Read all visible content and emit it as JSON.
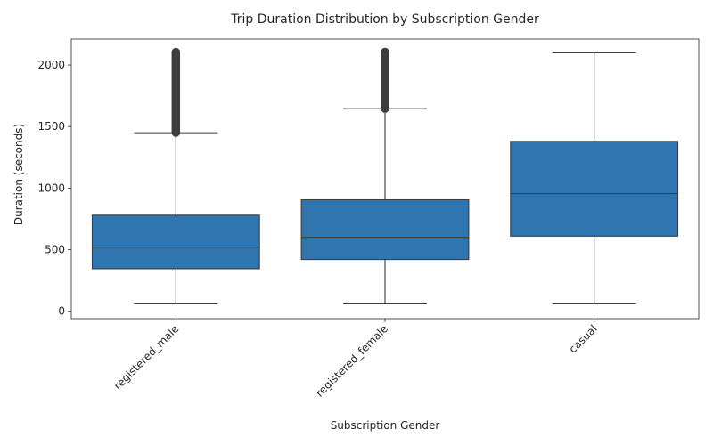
{
  "chart_data": {
    "type": "box",
    "title": "Trip Duration Distribution by Subscription Gender",
    "xlabel": "Subscription Gender",
    "ylabel": "Duration (seconds)",
    "categories": [
      "registered_male",
      "registered_female",
      "casual"
    ],
    "yticks": [
      0,
      500,
      1000,
      1500,
      2000
    ],
    "ylim": [
      -60,
      2210
    ],
    "grid": false,
    "legend": "none",
    "x_tick_rotation_deg": 45,
    "box_color": "#2f75b0",
    "line_color": "#3d3d3d",
    "boxes": [
      {
        "category": "registered_male",
        "whisker_low": 60,
        "q1": 345,
        "median": 520,
        "q3": 780,
        "whisker_high": 1450,
        "outliers_range": [
          1450,
          2105
        ]
      },
      {
        "category": "registered_female",
        "whisker_low": 60,
        "q1": 420,
        "median": 600,
        "q3": 905,
        "whisker_high": 1645,
        "outliers_range": [
          1645,
          2105
        ]
      },
      {
        "category": "casual",
        "whisker_low": 60,
        "q1": 610,
        "median": 955,
        "q3": 1380,
        "whisker_high": 2105,
        "outliers_range": null
      }
    ]
  }
}
